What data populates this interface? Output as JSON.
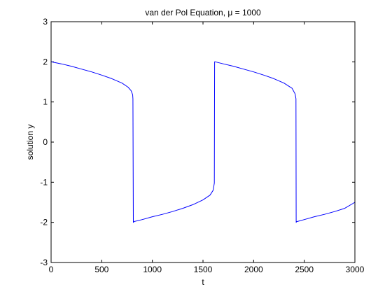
{
  "chart_data": {
    "type": "line",
    "title": "van der Pol Equation, μ = 1000",
    "xlabel": "t",
    "ylabel": "solution y",
    "xlim": [
      0,
      3000
    ],
    "ylim": [
      -3,
      3
    ],
    "xticks": [
      0,
      500,
      1000,
      1500,
      2000,
      2500,
      3000
    ],
    "yticks": [
      -3,
      -2,
      -1,
      0,
      1,
      2,
      3
    ],
    "grid": false,
    "series": [
      {
        "color": "#0000ff",
        "x": [
          0,
          100,
          200,
          300,
          400,
          500,
          600,
          700,
          760,
          790,
          805,
          808,
          812,
          820,
          900,
          1000,
          1100,
          1200,
          1300,
          1400,
          1500,
          1570,
          1600,
          1612,
          1615,
          1620,
          1700,
          1800,
          1900,
          2000,
          2100,
          2200,
          2300,
          2380,
          2410,
          2418,
          2420,
          2424,
          2430,
          2500,
          2600,
          2700,
          2800,
          2900,
          3000
        ],
        "y": [
          2.0,
          1.95,
          1.89,
          1.82,
          1.75,
          1.67,
          1.58,
          1.47,
          1.37,
          1.28,
          1.18,
          1.08,
          -2.0,
          -1.98,
          -1.93,
          -1.86,
          -1.8,
          -1.73,
          -1.65,
          -1.56,
          -1.44,
          -1.32,
          -1.2,
          -1.02,
          2.0,
          2.0,
          1.95,
          1.89,
          1.82,
          1.75,
          1.67,
          1.58,
          1.47,
          1.34,
          1.2,
          1.08,
          -2.0,
          -1.98,
          -1.98,
          -1.93,
          -1.86,
          -1.8,
          -1.73,
          -1.65,
          -1.5
        ]
      }
    ]
  }
}
